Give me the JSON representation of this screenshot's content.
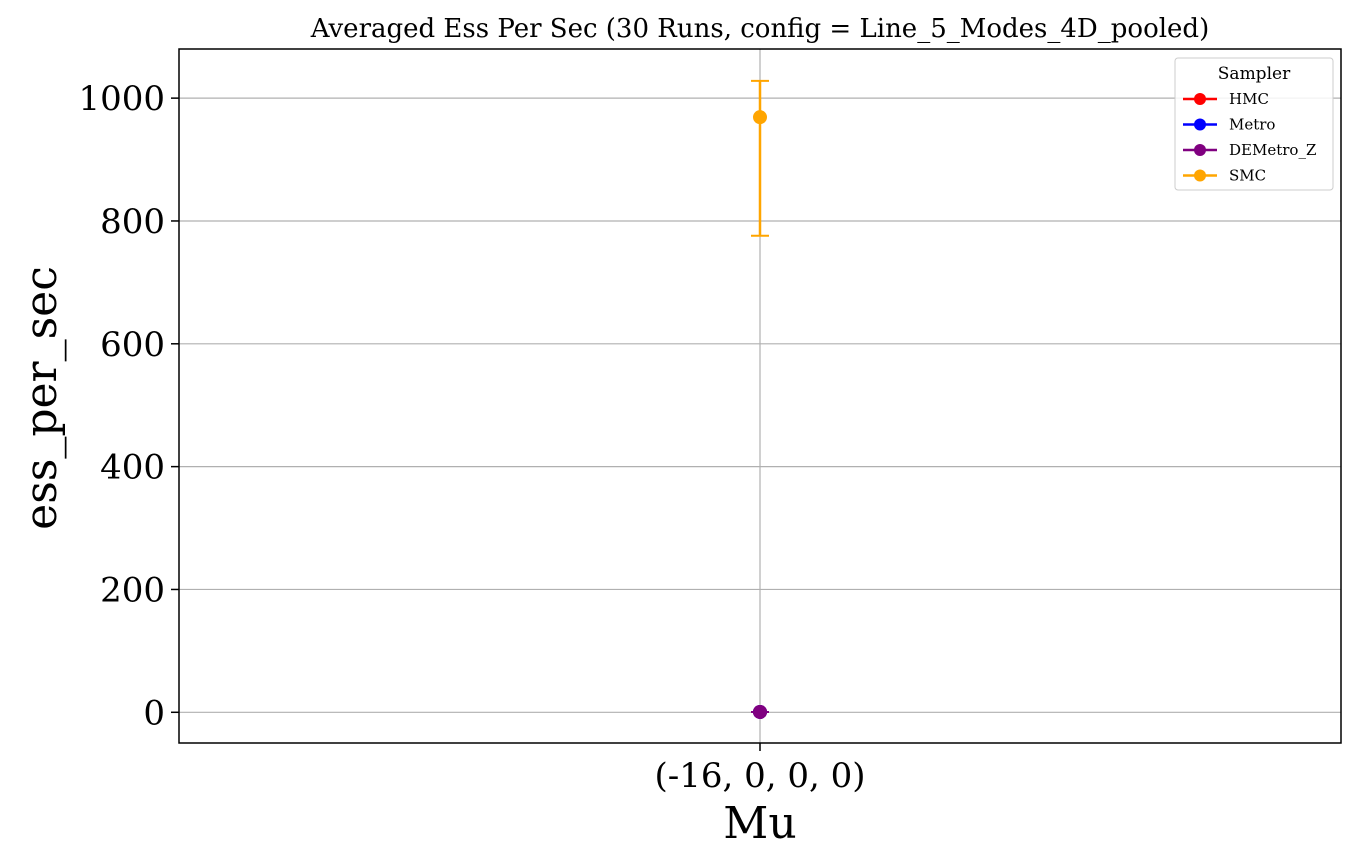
{
  "chart_data": {
    "type": "scatter",
    "title": "Averaged Ess Per Sec (30 Runs, config = Line_5_Modes_4D_pooled)",
    "xlabel": "Mu",
    "ylabel": "ess_per_sec",
    "categories": [
      "(-16, 0, 0, 0)"
    ],
    "ylim": [
      -50,
      1080
    ],
    "yticks": [
      0,
      200,
      400,
      600,
      800,
      1000
    ],
    "grid": true,
    "legend": {
      "title": "Sampler",
      "placement": "top-right"
    },
    "series": [
      {
        "name": "HMC",
        "color": "#ff0000",
        "values": [
          0.5
        ],
        "err_low": [
          0.5
        ],
        "err_high": [
          0.5
        ]
      },
      {
        "name": "Metro",
        "color": "#0000ff",
        "values": [
          0.5
        ],
        "err_low": [
          0.5
        ],
        "err_high": [
          0.5
        ]
      },
      {
        "name": "DEMetro_Z",
        "color": "#800080",
        "values": [
          0.5
        ],
        "err_low": [
          0.5
        ],
        "err_high": [
          0.5
        ]
      },
      {
        "name": "SMC",
        "color": "#ffa500",
        "values": [
          969
        ],
        "err_low": [
          776
        ],
        "err_high": [
          1028
        ]
      }
    ]
  }
}
